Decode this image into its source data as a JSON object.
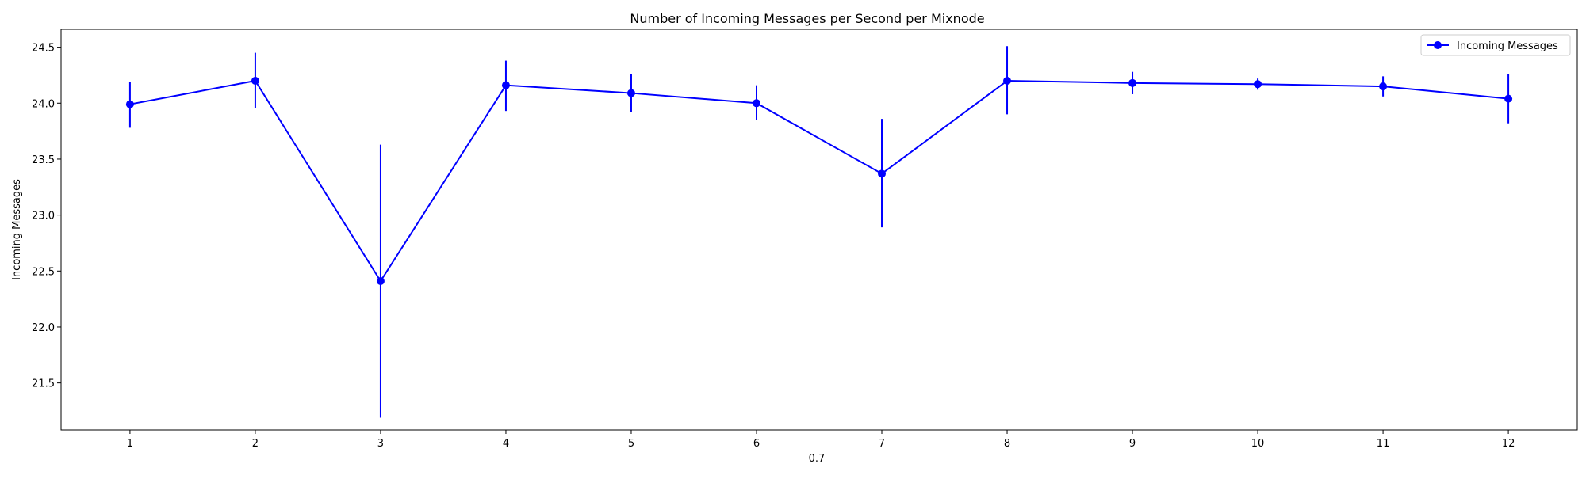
{
  "chart_data": {
    "type": "line",
    "title": "Number of Incoming Messages per Second per Mixnode",
    "xlabel": "0.7",
    "ylabel": "Incoming Messages",
    "x": [
      1,
      2,
      3,
      4,
      5,
      6,
      7,
      8,
      9,
      10,
      11,
      12
    ],
    "x_tick_labels": [
      "1",
      "2",
      "3",
      "4",
      "5",
      "6",
      "7",
      "8",
      "9",
      "10",
      "11",
      "12"
    ],
    "y_ticks": [
      21.5,
      22.0,
      22.5,
      23.0,
      23.5,
      24.0,
      24.5
    ],
    "y_tick_labels": [
      "21.5",
      "22.0",
      "22.5",
      "23.0",
      "23.5",
      "24.0",
      "24.5"
    ],
    "xlim": [
      0.45,
      12.55
    ],
    "ylim": [
      21.08,
      24.66
    ],
    "grid": false,
    "legend": {
      "position": "upper right",
      "entries": [
        "Incoming Messages"
      ]
    },
    "series": [
      {
        "name": "Incoming Messages",
        "color": "#0000ff",
        "marker": "circle",
        "values": [
          23.99,
          24.2,
          22.41,
          24.16,
          24.09,
          24.0,
          23.37,
          24.2,
          24.18,
          24.17,
          24.15,
          24.04
        ],
        "error_low": [
          23.78,
          23.96,
          21.19,
          23.93,
          23.92,
          23.85,
          22.89,
          23.9,
          24.08,
          24.12,
          24.06,
          23.82
        ],
        "error_high": [
          24.19,
          24.45,
          23.63,
          24.38,
          24.26,
          24.16,
          23.86,
          24.51,
          24.28,
          24.22,
          24.24,
          24.26
        ]
      }
    ]
  }
}
